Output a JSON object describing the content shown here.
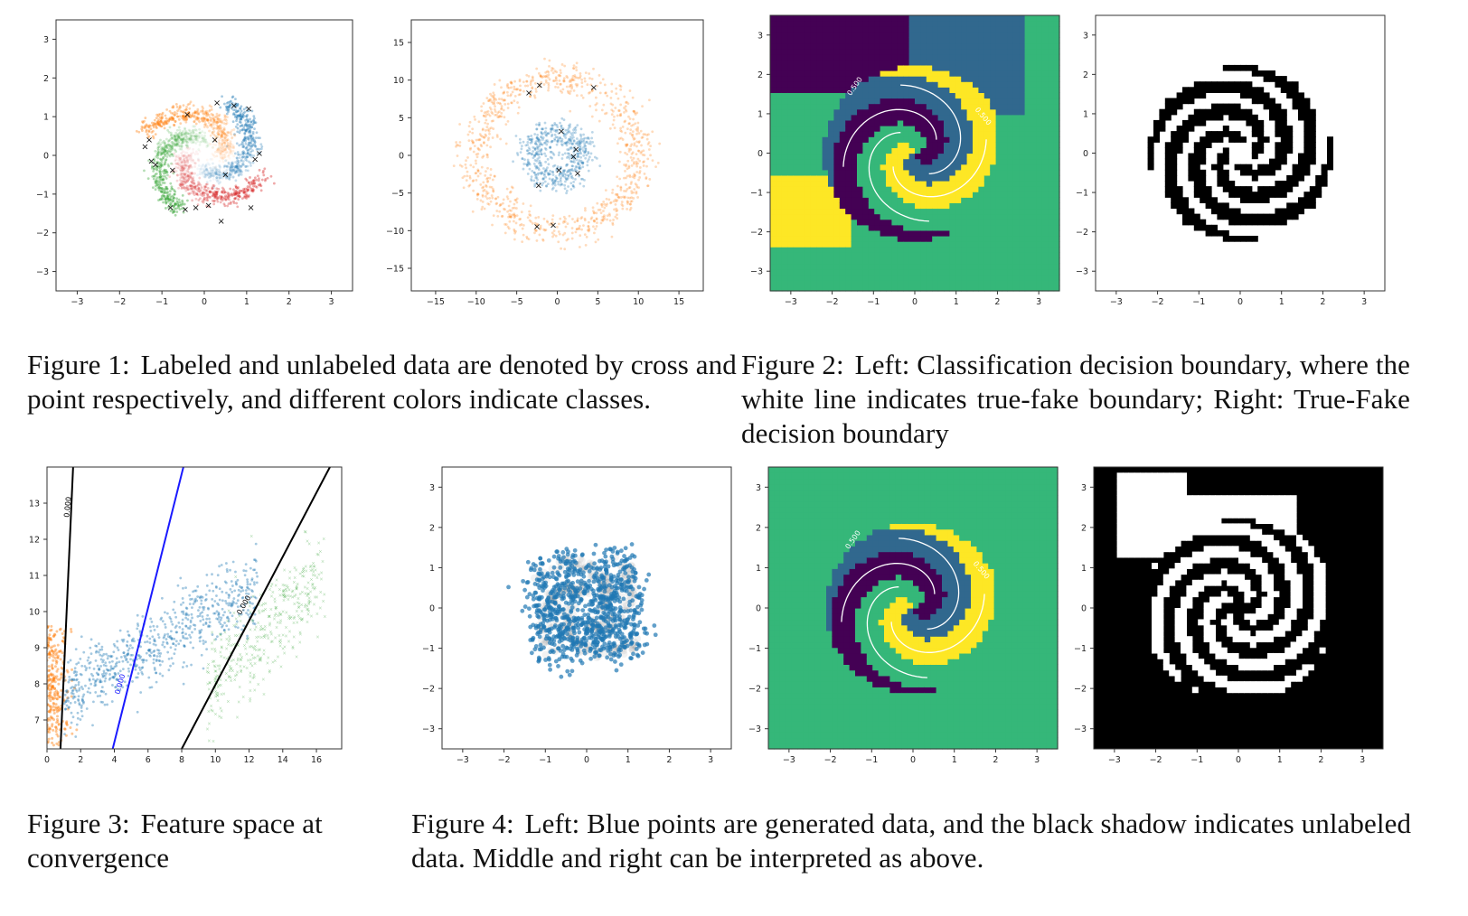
{
  "figures": [
    {
      "number": "Figure 1:",
      "text": "Labeled and unlabeled data are denoted by cross and point respectively, and different colors indicate classes."
    },
    {
      "number": "Figure 2:",
      "text": "Left: Classification decision boundary, where the white line indicates true-fake boundary; Right: True-Fake decision boundary"
    },
    {
      "number": "Figure 3:",
      "text": "Feature space at convergence"
    },
    {
      "number": "Figure 4:",
      "text": "Left: Blue points are generated data, and the black shadow indicates unlabeled data. Middle and right can be interpreted as above."
    }
  ],
  "colors": {
    "blue": "#1f77b4",
    "orange": "#ff7f0e",
    "green": "#2ca02c",
    "red": "#d62728",
    "viridis_dark": "#440154",
    "viridis_teal": "#31688e",
    "viridis_green": "#35b779",
    "viridis_yellow": "#fde725"
  },
  "contour_label": "0.500",
  "chart_data": [
    {
      "id": "fig1-left",
      "type": "scatter",
      "title": "",
      "xlabel": "",
      "ylabel": "",
      "xlim": [
        -3.5,
        3.5
      ],
      "ylim": [
        -3.5,
        3.5
      ],
      "xticks": [
        "−3",
        "−2",
        "−1",
        "0",
        "1",
        "2",
        "3"
      ],
      "yticks": [
        "−3",
        "−2",
        "−1",
        "0",
        "1",
        "2",
        "3"
      ],
      "series": [
        {
          "class": "blue",
          "labeled_count": 9
        },
        {
          "class": "orange",
          "labeled_count": 6
        },
        {
          "class": "green",
          "labeled_count": 6
        },
        {
          "class": "red",
          "labeled_count": 6
        }
      ]
    },
    {
      "id": "fig1-right",
      "type": "scatter",
      "title": "",
      "xlabel": "",
      "ylabel": "",
      "xlim": [
        -18,
        18
      ],
      "ylim": [
        -18,
        18
      ],
      "xticks": [
        "−15",
        "−10",
        "−5",
        "0",
        "5",
        "10",
        "15"
      ],
      "yticks": [
        "−15",
        "−10",
        "−5",
        "0",
        "5",
        "10",
        "15"
      ],
      "series": [
        {
          "class": "blue",
          "shape": "inner ring",
          "radius": 4
        },
        {
          "class": "orange",
          "shape": "outer ring",
          "radius": 10
        }
      ]
    },
    {
      "id": "fig2-left",
      "type": "heatmap",
      "title": "",
      "xlim": [
        -3.5,
        3.5
      ],
      "ylim": [
        -3.5,
        3.5
      ],
      "xticks": [
        "−3",
        "−2",
        "−1",
        "0",
        "1",
        "2",
        "3"
      ],
      "yticks": [
        "−3",
        "−2",
        "−1",
        "0",
        "1",
        "2",
        "3"
      ],
      "contour_level": 0.5
    },
    {
      "id": "fig2-right",
      "type": "heatmap",
      "title": "",
      "xlim": [
        -3.5,
        3.5
      ],
      "ylim": [
        -3.5,
        3.5
      ],
      "xticks": [
        "−3",
        "−2",
        "−1",
        "0",
        "1",
        "2",
        "3"
      ],
      "yticks": [
        "−3",
        "−2",
        "−1",
        "0",
        "1",
        "2",
        "3"
      ]
    },
    {
      "id": "fig3",
      "type": "scatter",
      "title": "",
      "xlabel": "",
      "ylabel": "",
      "xlim": [
        0,
        17.5
      ],
      "ylim": [
        6.2,
        14
      ],
      "xticks": [
        "0",
        "2",
        "4",
        "6",
        "8",
        "10",
        "12",
        "14",
        "16"
      ],
      "yticks": [
        "7",
        "8",
        "9",
        "10",
        "11",
        "12",
        "13"
      ],
      "lines": [
        {
          "color": "black",
          "label": "0.000"
        },
        {
          "color": "blue",
          "label": "0.000"
        },
        {
          "color": "black",
          "label": "0.000"
        }
      ]
    },
    {
      "id": "fig4-left",
      "type": "scatter",
      "title": "",
      "xlim": [
        -3.5,
        3.5
      ],
      "ylim": [
        -3.5,
        3.5
      ],
      "xticks": [
        "−3",
        "−2",
        "−1",
        "0",
        "1",
        "2",
        "3"
      ],
      "yticks": [
        "−3",
        "−2",
        "−1",
        "0",
        "1",
        "2",
        "3"
      ]
    },
    {
      "id": "fig4-middle",
      "type": "heatmap",
      "title": "",
      "xlim": [
        -3.5,
        3.5
      ],
      "ylim": [
        -3.5,
        3.5
      ],
      "xticks": [
        "−3",
        "−2",
        "−1",
        "0",
        "1",
        "2",
        "3"
      ],
      "yticks": [
        "−3",
        "−2",
        "−1",
        "0",
        "1",
        "2",
        "3"
      ],
      "contour_level": 0.5
    },
    {
      "id": "fig4-right",
      "type": "heatmap",
      "title": "",
      "xlim": [
        -3.5,
        3.5
      ],
      "ylim": [
        -3.5,
        3.5
      ],
      "xticks": [
        "−3",
        "−2",
        "−1",
        "0",
        "1",
        "2",
        "3"
      ],
      "yticks": [
        "−3",
        "−2",
        "−1",
        "0",
        "1",
        "2",
        "3"
      ]
    }
  ]
}
